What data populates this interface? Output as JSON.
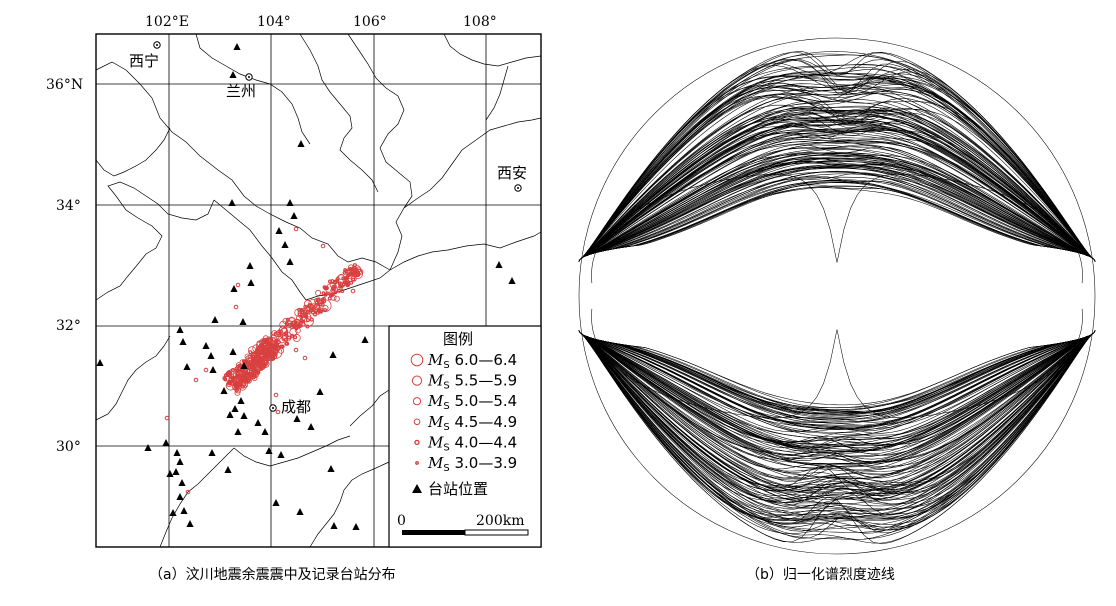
{
  "panel_a": {
    "lon_labels": [
      {
        "text": "102°E",
        "lon": 102
      },
      {
        "text": "104°",
        "lon": 104
      },
      {
        "text": "106°",
        "lon": 106
      },
      {
        "text": "108°",
        "lon": 108
      }
    ],
    "lat_labels": [
      {
        "text": "36°N",
        "lat": 36
      },
      {
        "text": "34°",
        "lat": 34
      },
      {
        "text": "32°",
        "lat": 32
      },
      {
        "text": "30°",
        "lat": 30
      }
    ],
    "cities": [
      {
        "name": "西宁",
        "lon": 101.78,
        "lat": 36.62
      },
      {
        "name": "兰州",
        "lon": 103.82,
        "lat": 36.06
      },
      {
        "name": "西安",
        "lon": 108.94,
        "lat": 34.27
      },
      {
        "name": "成都",
        "lon": 104.07,
        "lat": 30.67
      }
    ],
    "legend": {
      "title": "图例",
      "items": [
        {
          "label": "MS 6.0—6.4",
          "prefix": "M",
          "sub": "S",
          "range": " 6.0—6.4"
        },
        {
          "label": "MS 5.5—5.9",
          "prefix": "M",
          "sub": "S",
          "range": " 5.5—5.9"
        },
        {
          "label": "MS 5.0—5.4",
          "prefix": "M",
          "sub": "S",
          "range": " 5.0—5.4"
        },
        {
          "label": "MS 4.5—4.9",
          "prefix": "M",
          "sub": "S",
          "range": " 4.5—4.9"
        },
        {
          "label": "MS 4.0—4.4",
          "prefix": "M",
          "sub": "S",
          "range": " 4.0—4.4"
        },
        {
          "label": "MS 3.0—3.9",
          "prefix": "M",
          "sub": "S",
          "range": " 3.0—3.9"
        }
      ],
      "station_label": "台站位置"
    },
    "scale": {
      "start": "0",
      "end": "200km"
    },
    "caption": "（a）汶川地震余震震中及记录台站分布"
  },
  "panel_b": {
    "caption": "（b）归一化谱烈度迹线"
  },
  "colors": {
    "quake": "#d84040",
    "ink": "#000000"
  }
}
